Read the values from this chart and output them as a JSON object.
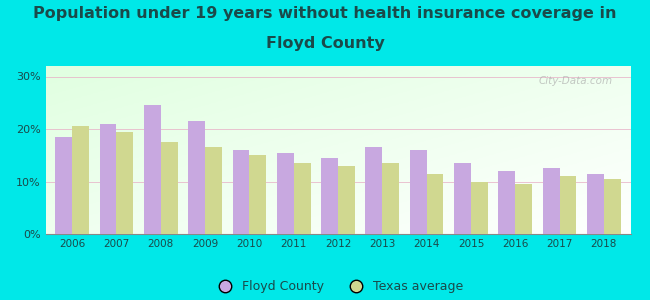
{
  "title_line1": "Population under 19 years without health insurance coverage in",
  "title_line2": "Floyd County",
  "years": [
    2006,
    2007,
    2008,
    2009,
    2010,
    2011,
    2012,
    2013,
    2014,
    2015,
    2016,
    2017,
    2018
  ],
  "floyd_county": [
    18.5,
    21.0,
    24.5,
    21.5,
    16.0,
    15.5,
    14.5,
    16.5,
    16.0,
    13.5,
    12.0,
    12.5,
    11.5
  ],
  "texas_avg": [
    20.5,
    19.5,
    17.5,
    16.5,
    15.0,
    13.5,
    13.0,
    13.5,
    11.5,
    10.0,
    9.5,
    11.0,
    10.5
  ],
  "floyd_color": "#c8a8e0",
  "texas_color": "#d0d890",
  "background_color": "#00e8e8",
  "title_color": "#1a4a4a",
  "title_fontsize": 11.5,
  "ylim": [
    0,
    32
  ],
  "yticks": [
    0,
    10,
    20,
    30
  ],
  "ytick_labels": [
    "0%",
    "10%",
    "20%",
    "30%"
  ],
  "floyd_label": "Floyd County",
  "texas_label": "Texas average",
  "watermark": "City-Data.com"
}
